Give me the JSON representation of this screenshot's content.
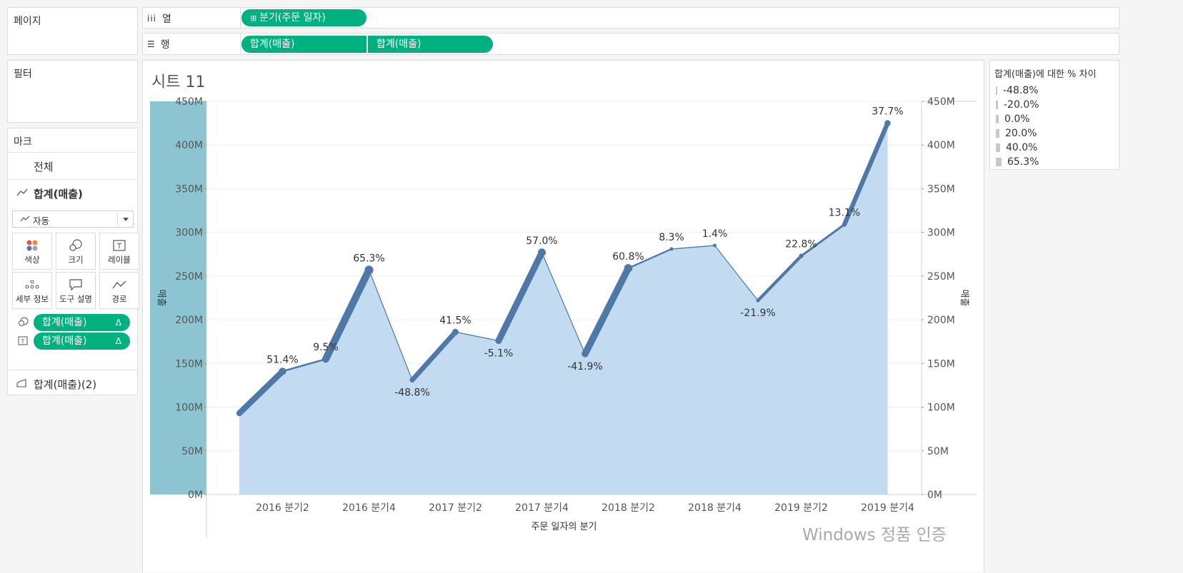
{
  "panels": {
    "pages": "페이지",
    "filters": "필터",
    "marks": "마크"
  },
  "shelves": {
    "columns_label": "열",
    "columns_pill": "분기(주문 일자)",
    "rows_label": "행",
    "rows_pills": [
      "합계(매출)",
      "합계(매출)"
    ]
  },
  "marks": {
    "all": "전체",
    "primary_measure": "합계(매출)",
    "mark_type": "자동",
    "cards": [
      "색상",
      "크기",
      "레이블",
      "세부 정보",
      "도구 설명",
      "경로"
    ],
    "encoding_pills": [
      "합계(매출)",
      "합계(매출)"
    ],
    "delta": "Δ",
    "secondary_measure": "합계(매출)(2)"
  },
  "sheet_title": "시트 11",
  "legend": {
    "title": "합계(매출)에 대한 % 차이",
    "items": [
      "-48.8%",
      "-20.0%",
      "0.0%",
      "20.0%",
      "40.0%",
      "65.3%"
    ]
  },
  "watermark": "Windows 정품 인증",
  "chart_data": {
    "type": "line",
    "title": "시트 11",
    "xlabel": "주문 일자의 분기",
    "ylabel": "매출",
    "ylim": [
      0,
      450000000
    ],
    "y_ticks": [
      "0M",
      "50M",
      "100M",
      "150M",
      "200M",
      "250M",
      "300M",
      "350M",
      "400M",
      "450M"
    ],
    "x_ticks": [
      "2016 분기2",
      "2016 분기4",
      "2017 분기2",
      "2017 분기4",
      "2018 분기2",
      "2018 분기4",
      "2019 분기2",
      "2019 분기4"
    ],
    "x": [
      "2016 분기1",
      "2016 분기2",
      "2016 분기3",
      "2016 분기4",
      "2017 분기1",
      "2017 분기2",
      "2017 분기3",
      "2017 분기4",
      "2018 분기1",
      "2018 분기2",
      "2018 분기3",
      "2018 분기4",
      "2019 분기1",
      "2019 분기2",
      "2019 분기3",
      "2019 분기4"
    ],
    "series": [
      {
        "values": [
          93000000,
          141000000,
          155000000,
          257000000,
          131000000,
          186000000,
          176000000,
          277000000,
          161000000,
          259000000,
          281000000,
          285000000,
          222000000,
          273000000,
          309000000,
          425000000
        ],
        "labels": [
          "",
          "51.4%",
          "9.5%",
          "65.3%",
          "-48.8%",
          "41.5%",
          "-5.1%",
          "57.0%",
          "-41.9%",
          "60.8%",
          "8.3%",
          "1.4%",
          "-21.9%",
          "22.8%",
          "13.1%",
          "37.7%"
        ],
        "pct_diff": [
          0,
          51.4,
          9.5,
          65.3,
          -48.8,
          41.5,
          -5.1,
          57.0,
          -41.9,
          60.8,
          8.3,
          1.4,
          -21.9,
          22.8,
          13.1,
          37.7
        ],
        "color": "#4e79a7"
      }
    ],
    "area_color": "#c3dbf0",
    "left_axis_band_color": "#8cc4d2",
    "grid": true
  }
}
